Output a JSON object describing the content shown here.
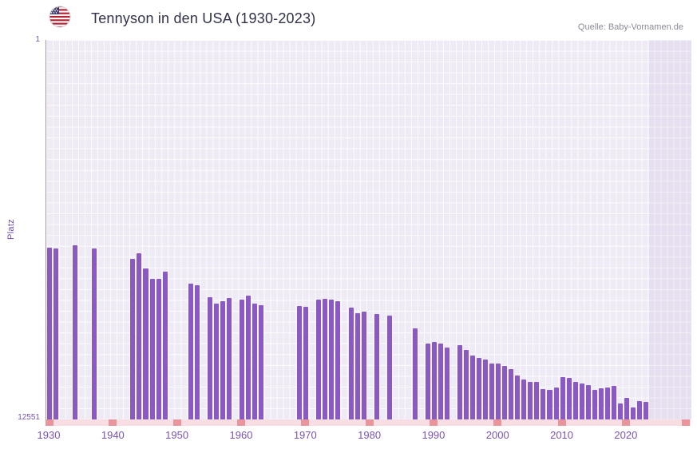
{
  "header": {
    "title": "Tennyson in den USA (1930-2023)",
    "source": "Quelle: Baby-Vornamen.de"
  },
  "colors": {
    "bar": "#8a5ac2",
    "plot_bg": "#eeebf5",
    "grid_line": "#ffffff",
    "axis_text": "#7a53b5",
    "title_text": "#31314a",
    "source_text": "#8b8b99",
    "tick_marker": "#e9959b",
    "axis_strip": "#f8dee3",
    "y_axis_line": "#a58adb"
  },
  "chart_data": {
    "type": "bar",
    "title": "Tennyson in den USA (1930-2023)",
    "xlabel": "",
    "ylabel": "Platz",
    "legend": "none",
    "grid": true,
    "y_axis": {
      "top_label": "1",
      "bottom_label": "12551",
      "min": 1,
      "max": 12551,
      "inverted": true
    },
    "x_ticks": [
      1930,
      1940,
      1950,
      1960,
      1970,
      1980,
      1990,
      2000,
      2010,
      2020
    ],
    "years": [
      1930,
      1931,
      1932,
      1933,
      1934,
      1935,
      1936,
      1937,
      1938,
      1939,
      1940,
      1941,
      1942,
      1943,
      1944,
      1945,
      1946,
      1947,
      1948,
      1949,
      1950,
      1951,
      1952,
      1953,
      1954,
      1955,
      1956,
      1957,
      1958,
      1959,
      1960,
      1961,
      1962,
      1963,
      1964,
      1965,
      1966,
      1967,
      1968,
      1969,
      1970,
      1971,
      1972,
      1973,
      1974,
      1975,
      1976,
      1977,
      1978,
      1979,
      1980,
      1981,
      1982,
      1983,
      1984,
      1985,
      1986,
      1987,
      1988,
      1989,
      1990,
      1991,
      1992,
      1993,
      1994,
      1995,
      1996,
      1997,
      1998,
      1999,
      2000,
      2001,
      2002,
      2003,
      2004,
      2005,
      2006,
      2007,
      2008,
      2009,
      2010,
      2011,
      2012,
      2013,
      2014,
      2015,
      2016,
      2017,
      2018,
      2019,
      2020,
      2021,
      2022,
      2023
    ],
    "ranks": [
      6870,
      6910,
      null,
      null,
      6800,
      null,
      null,
      6890,
      null,
      null,
      null,
      null,
      null,
      7230,
      7060,
      7560,
      7890,
      7910,
      7660,
      null,
      null,
      null,
      8060,
      8120,
      null,
      8510,
      8720,
      8650,
      8540,
      null,
      8590,
      8460,
      8720,
      8760,
      null,
      null,
      null,
      null,
      null,
      8800,
      8830,
      null,
      8590,
      8560,
      8590,
      8650,
      null,
      8860,
      9040,
      8990,
      null,
      9070,
      null,
      9120,
      null,
      null,
      null,
      9540,
      null,
      10040,
      9990,
      10040,
      10170,
      null,
      10100,
      10250,
      10440,
      10520,
      10570,
      10700,
      10700,
      10780,
      10890,
      11100,
      11230,
      11310,
      11310,
      11550,
      11570,
      11490,
      11150,
      11180,
      11310,
      11360,
      11410,
      11570,
      11520,
      11490,
      11440,
      12020,
      11840,
      12150,
      11940,
      11970
    ]
  }
}
